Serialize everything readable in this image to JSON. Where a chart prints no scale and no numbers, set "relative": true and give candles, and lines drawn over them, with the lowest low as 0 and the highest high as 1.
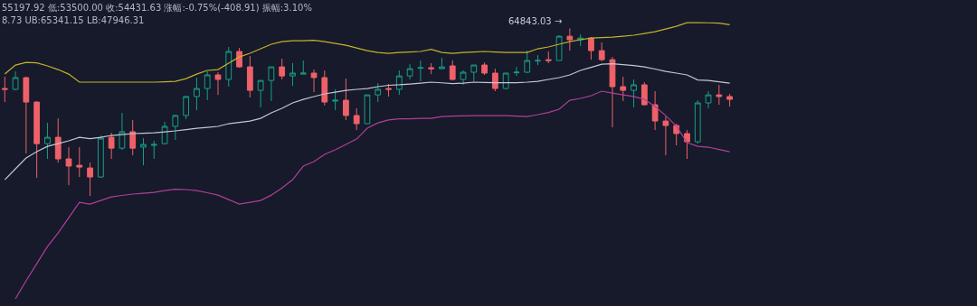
{
  "chart_data": {
    "type": "candlestick",
    "relative": true,
    "categories": [
      null,
      null,
      null,
      null,
      null,
      null,
      null,
      null,
      null,
      null,
      null,
      null,
      null,
      null,
      null,
      null,
      null,
      null,
      null,
      null,
      null,
      null,
      null,
      null,
      null,
      null,
      null,
      null,
      null,
      null,
      null,
      null,
      null,
      null,
      null,
      null,
      null,
      null,
      null,
      null,
      null,
      null,
      null,
      null,
      null,
      null,
      null,
      null,
      null,
      null,
      null,
      null,
      null,
      null,
      null,
      null,
      null,
      null,
      null,
      null,
      null,
      null,
      null,
      null,
      null,
      null,
      null,
      null,
      null
    ],
    "ohlc": [
      [
        0.641,
        0.711,
        0.56,
        0.636
      ],
      [
        0.636,
        0.743,
        0.63,
        0.706
      ],
      [
        0.706,
        0.711,
        0.253,
        0.56
      ],
      [
        0.56,
        0.566,
        0.108,
        0.312
      ],
      [
        0.312,
        0.436,
        0.221,
        0.35
      ],
      [
        0.35,
        0.463,
        0.199,
        0.221
      ],
      [
        0.221,
        0.291,
        0.064,
        0.178
      ],
      [
        0.183,
        0.291,
        0.113,
        0.172
      ],
      [
        0.167,
        0.199,
        0,
        0.113
      ],
      [
        0.113,
        0.361,
        0.108,
        0.345
      ],
      [
        0.35,
        0.377,
        0.221,
        0.285
      ],
      [
        0.285,
        0.496,
        0.275,
        0.383
      ],
      [
        0.383,
        0.453,
        0.242,
        0.285
      ],
      [
        0.291,
        0.345,
        0.183,
        0.307
      ],
      [
        0.302,
        0.329,
        0.221,
        0.307
      ],
      [
        0.312,
        0.442,
        0.307,
        0.415
      ],
      [
        0.415,
        0.485,
        0.334,
        0.48
      ],
      [
        0.48,
        0.598,
        0.458,
        0.593
      ],
      [
        0.593,
        0.706,
        0.512,
        0.641
      ],
      [
        0.641,
        0.743,
        0.571,
        0.722
      ],
      [
        0.722,
        0.738,
        0.603,
        0.695
      ],
      [
        0.695,
        0.889,
        0.652,
        0.862
      ],
      [
        0.862,
        0.883,
        0.765,
        0.77
      ],
      [
        0.77,
        0.835,
        0.587,
        0.63
      ],
      [
        0.63,
        0.689,
        0.528,
        0.689
      ],
      [
        0.689,
        0.77,
        0.566,
        0.77
      ],
      [
        0.77,
        0.819,
        0.695,
        0.716
      ],
      [
        0.716,
        0.792,
        0.657,
        0.733
      ],
      [
        0.727,
        0.808,
        0.727,
        0.733
      ],
      [
        0.733,
        0.754,
        0.619,
        0.706
      ],
      [
        0.706,
        0.749,
        0.539,
        0.56
      ],
      [
        0.566,
        0.636,
        0.512,
        0.571
      ],
      [
        0.571,
        0.7,
        0.453,
        0.48
      ],
      [
        0.48,
        0.523,
        0.393,
        0.431
      ],
      [
        0.431,
        0.603,
        0.431,
        0.603
      ],
      [
        0.603,
        0.673,
        0.56,
        0.636
      ],
      [
        0.641,
        0.668,
        0.593,
        0.636
      ],
      [
        0.636,
        0.749,
        0.603,
        0.716
      ],
      [
        0.716,
        0.786,
        0.695,
        0.759
      ],
      [
        0.762,
        0.808,
        0.684,
        0.765
      ],
      [
        0.765,
        0.792,
        0.727,
        0.759
      ],
      [
        0.759,
        0.824,
        0.759,
        0.77
      ],
      [
        0.776,
        0.808,
        0.689,
        0.695
      ],
      [
        0.695,
        0.749,
        0.663,
        0.738
      ],
      [
        0.738,
        0.781,
        0.684,
        0.781
      ],
      [
        0.781,
        0.797,
        0.722,
        0.733
      ],
      [
        0.733,
        0.759,
        0.625,
        0.641
      ],
      [
        0.641,
        0.733,
        0.636,
        0.733
      ],
      [
        0.735,
        0.77,
        0.716,
        0.738
      ],
      [
        0.738,
        0.867,
        0.733,
        0.808
      ],
      [
        0.805,
        0.84,
        0.781,
        0.808
      ],
      [
        0.813,
        0.862,
        0.792,
        0.808
      ],
      [
        0.808,
        0.959,
        0.808,
        0.953
      ],
      [
        0.953,
        1,
        0.867,
        0.932
      ],
      [
        0.932,
        0.964,
        0.894,
        0.942
      ],
      [
        0.942,
        0.948,
        0.813,
        0.867
      ],
      [
        0.867,
        0.916,
        0.803,
        0.813
      ],
      [
        0.813,
        0.829,
        0.409,
        0.652
      ],
      [
        0.652,
        0.711,
        0.566,
        0.63
      ],
      [
        0.63,
        0.695,
        0.528,
        0.663
      ],
      [
        0.663,
        0.679,
        0.539,
        0.544
      ],
      [
        0.544,
        0.625,
        0.393,
        0.447
      ],
      [
        0.447,
        0.474,
        0.242,
        0.42
      ],
      [
        0.42,
        0.431,
        0.302,
        0.372
      ],
      [
        0.372,
        0.393,
        0.221,
        0.323
      ],
      [
        0.323,
        0.571,
        0.312,
        0.555
      ],
      [
        0.555,
        0.625,
        0.523,
        0.603
      ],
      [
        0.603,
        0.663,
        0.544,
        0.593
      ],
      [
        0.593,
        0.609,
        0.533,
        0.576
      ]
    ],
    "series": [
      {
        "type": "line",
        "color": "#c2b22c",
        "values": [
          0.727,
          0.781,
          0.797,
          0.794,
          0.776,
          0.754,
          0.727,
          0.679,
          0.679,
          0.679,
          0.679,
          0.679,
          0.679,
          0.679,
          0.679,
          0.681,
          0.684,
          0.7,
          0.727,
          0.749,
          0.754,
          0.792,
          0.829,
          0.851,
          0.878,
          0.905,
          0.921,
          0.926,
          0.926,
          0.929,
          0.921,
          0.91,
          0.899,
          0.883,
          0.867,
          0.856,
          0.851,
          0.856,
          0.859,
          0.862,
          0.875,
          0.856,
          0.851,
          0.856,
          0.859,
          0.862,
          0.859,
          0.856,
          0.856,
          0.856,
          0.878,
          0.889,
          0.905,
          0.921,
          0.932,
          0.942,
          0.945,
          0.948,
          0.953,
          0.959,
          0.969,
          0.98,
          0.996,
          1.012,
          1.034,
          1.034,
          1.033,
          1.031,
          1.022
        ]
      },
      {
        "type": "line",
        "color": "#c4c6d2",
        "values": [
          0.097,
          0.162,
          0.226,
          0.264,
          0.296,
          0.312,
          0.329,
          0.35,
          0.342,
          0.35,
          0.361,
          0.366,
          0.372,
          0.374,
          0.377,
          0.382,
          0.388,
          0.396,
          0.404,
          0.409,
          0.415,
          0.431,
          0.439,
          0.447,
          0.463,
          0.496,
          0.523,
          0.555,
          0.576,
          0.593,
          0.609,
          0.619,
          0.63,
          0.636,
          0.641,
          0.652,
          0.66,
          0.663,
          0.668,
          0.673,
          0.679,
          0.675,
          0.67,
          0.673,
          0.679,
          0.677,
          0.676,
          0.676,
          0.676,
          0.679,
          0.684,
          0.695,
          0.706,
          0.722,
          0.749,
          0.767,
          0.786,
          0.789,
          0.783,
          0.778,
          0.77,
          0.757,
          0.743,
          0.733,
          0.722,
          0.692,
          0.689,
          0.681,
          0.673
        ]
      },
      {
        "type": "line",
        "color": "#b03f98",
        "values": [
          null,
          -0.614,
          -0.506,
          -0.404,
          -0.302,
          -0.221,
          -0.13,
          -0.038,
          -0.049,
          -0.027,
          -0.006,
          0.003,
          0.011,
          0.016,
          0.021,
          0.032,
          0.04,
          0.038,
          0.032,
          0.019,
          0.005,
          -0.022,
          -0.049,
          -0.038,
          -0.027,
          0.005,
          0.048,
          0.097,
          0.178,
          0.205,
          0.248,
          0.275,
          0.307,
          0.339,
          0.404,
          0.436,
          0.453,
          0.46,
          0.46,
          0.463,
          0.463,
          0.474,
          0.476,
          0.478,
          0.479,
          0.479,
          0.479,
          0.479,
          0.476,
          0.474,
          0.485,
          0.498,
          0.517,
          0.571,
          0.582,
          0.598,
          0.625,
          0.614,
          0.603,
          0.593,
          0.576,
          0.533,
          0.479,
          0.417,
          0.318,
          0.296,
          0.291,
          0.277,
          0.264
        ]
      }
    ],
    "value_labels": [
      null,
      null,
      null,
      null,
      null,
      null,
      null,
      null,
      null,
      null,
      null,
      null,
      null,
      null,
      null,
      null,
      null,
      null,
      null,
      null,
      null,
      null,
      null,
      null,
      null,
      null,
      null,
      null,
      null,
      null,
      null,
      null,
      null,
      null,
      null,
      null,
      null,
      null,
      null,
      null,
      null,
      null,
      null,
      null,
      null,
      null,
      null,
      null,
      null,
      null,
      null,
      null,
      null,
      "64843.03 →",
      null,
      null,
      null,
      null,
      null,
      null,
      null,
      null,
      null,
      null,
      null,
      null,
      null,
      null,
      null
    ],
    "annotations": [
      "55197.92 低:53500.00 收:54431.63 涨幅:-0.75%(-408.91) 振幅:3.10%",
      "8.73 UB:65341.15 LB:47946.31"
    ]
  }
}
